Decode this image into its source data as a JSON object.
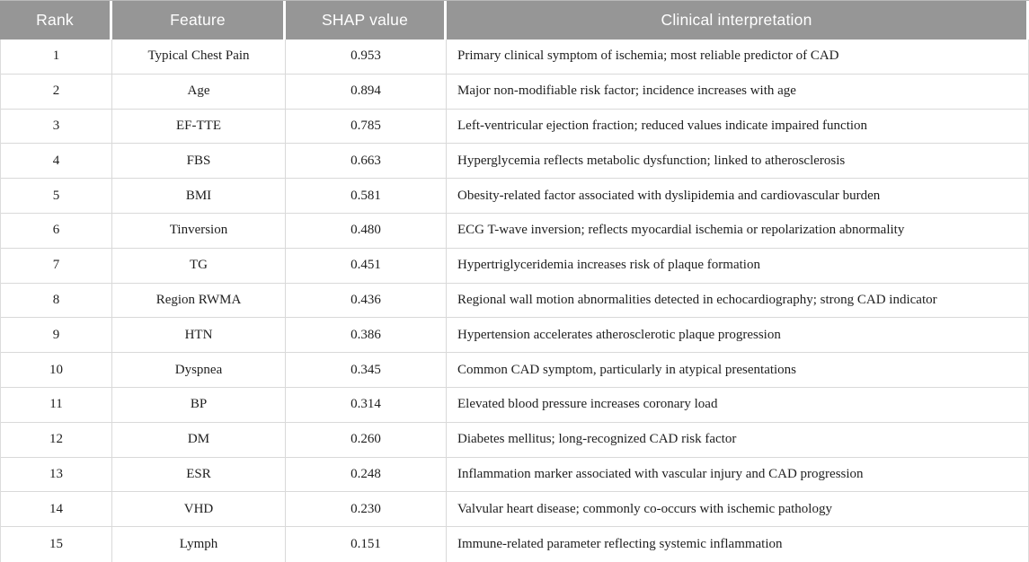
{
  "colors": {
    "header_bg": "#969696",
    "header_text": "#ffffff",
    "body_text": "#1e1e1e",
    "grid_line": "#d9d9d9",
    "bottom_border": "#b5b5b5"
  },
  "table": {
    "columns": [
      "Rank",
      "Feature",
      "SHAP value",
      "Clinical interpretation"
    ],
    "rows": [
      [
        "1",
        "Typical Chest Pain",
        "0.953",
        "Primary clinical symptom of ischemia; most reliable predictor of CAD"
      ],
      [
        "2",
        "Age",
        "0.894",
        "Major non-modifiable risk factor; incidence increases with age"
      ],
      [
        "3",
        "EF-TTE",
        "0.785",
        "Left-ventricular ejection fraction; reduced values indicate impaired function"
      ],
      [
        "4",
        "FBS",
        "0.663",
        "Hyperglycemia reflects metabolic dysfunction; linked to atherosclerosis"
      ],
      [
        "5",
        "BMI",
        "0.581",
        "Obesity-related factor associated with dyslipidemia and cardiovascular burden"
      ],
      [
        "6",
        "Tinversion",
        "0.480",
        "ECG T-wave inversion; reflects myocardial ischemia or repolarization abnormality"
      ],
      [
        "7",
        "TG",
        "0.451",
        "Hypertriglyceridemia increases risk of plaque formation"
      ],
      [
        "8",
        "Region RWMA",
        "0.436",
        "Regional wall motion abnormalities detected in echocardiography; strong CAD indicator"
      ],
      [
        "9",
        "HTN",
        "0.386",
        "Hypertension accelerates atherosclerotic plaque progression"
      ],
      [
        "10",
        "Dyspnea",
        "0.345",
        "Common CAD symptom, particularly in atypical presentations"
      ],
      [
        "11",
        "BP",
        "0.314",
        "Elevated blood pressure increases coronary load"
      ],
      [
        "12",
        "DM",
        "0.260",
        "Diabetes mellitus; long-recognized CAD risk factor"
      ],
      [
        "13",
        "ESR",
        "0.248",
        "Inflammation marker associated with vascular injury and CAD progression"
      ],
      [
        "14",
        "VHD",
        "0.230",
        "Valvular heart disease; commonly co-occurs with ischemic pathology"
      ],
      [
        "15",
        "Lymph",
        "0.151",
        "Immune-related parameter reflecting systemic inflammation"
      ]
    ]
  },
  "chart_data": {
    "type": "table",
    "title": "",
    "categories": [
      "Typical Chest Pain",
      "Age",
      "EF-TTE",
      "FBS",
      "BMI",
      "Tinversion",
      "TG",
      "Region RWMA",
      "HTN",
      "Dyspnea",
      "BP",
      "DM",
      "ESR",
      "VHD",
      "Lymph"
    ],
    "values": [
      0.953,
      0.894,
      0.785,
      0.663,
      0.581,
      0.48,
      0.451,
      0.436,
      0.386,
      0.345,
      0.314,
      0.26,
      0.248,
      0.23,
      0.151
    ],
    "value_label": "SHAP value"
  }
}
